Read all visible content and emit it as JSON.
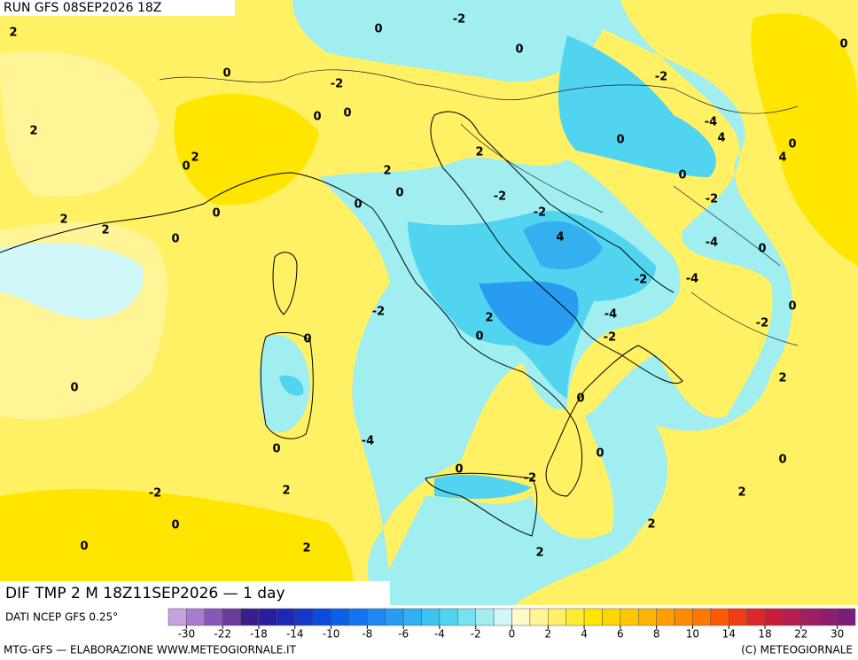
{
  "header": {
    "run": "RUN GFS 08SEP2026 18Z"
  },
  "title": "DIF TMP 2 M 18Z11SEP2026 — 1 day",
  "source": "DATI NCEP GFS 0.25°",
  "footer": {
    "left": "MTG-GFS — ELABORAZIONE WWW.METEOGIORNALE.IT",
    "right": "(C) METEOGIORNALE"
  },
  "colorbar": {
    "labels": [
      -30,
      -22,
      -18,
      -14,
      -10,
      -8,
      -6,
      -4,
      -2,
      0,
      2,
      4,
      6,
      8,
      10,
      14,
      18,
      22,
      30
    ],
    "colors": [
      "#c8a0e0",
      "#a87cd0",
      "#8858b8",
      "#6a3c9c",
      "#3a1c8c",
      "#2a1ea0",
      "#1e28b4",
      "#1438c8",
      "#0a4cdc",
      "#0a60e6",
      "#1474f0",
      "#1e88f0",
      "#289cf0",
      "#32b0f0",
      "#3cc4f0",
      "#50d4f0",
      "#78e2f0",
      "#a0eef0",
      "#d0f8f8",
      "#fffac8",
      "#fff596",
      "#fff064",
      "#ffeb32",
      "#ffe600",
      "#ffd700",
      "#ffc800",
      "#ffb400",
      "#ffa000",
      "#ff8c00",
      "#ff7800",
      "#ff5a00",
      "#f03c14",
      "#dc2828",
      "#c81e3c",
      "#b41e50",
      "#a01e64",
      "#8c1e6e",
      "#781e78"
    ]
  },
  "contour_labels": [
    2,
    0,
    -2,
    0,
    -2,
    0,
    -2,
    0,
    0,
    2,
    2,
    0,
    2,
    0,
    -4,
    4,
    0,
    4,
    2,
    0,
    -2,
    -2,
    0,
    -2,
    0,
    0,
    2,
    2,
    0,
    4,
    -4,
    0,
    -2,
    -4,
    -2,
    0,
    2,
    -4,
    -2,
    0,
    -2,
    0,
    0,
    2,
    0,
    -4,
    0,
    0,
    0,
    0,
    -2,
    -2,
    2,
    2,
    0,
    2,
    0,
    2,
    2,
    0,
    4
  ]
}
